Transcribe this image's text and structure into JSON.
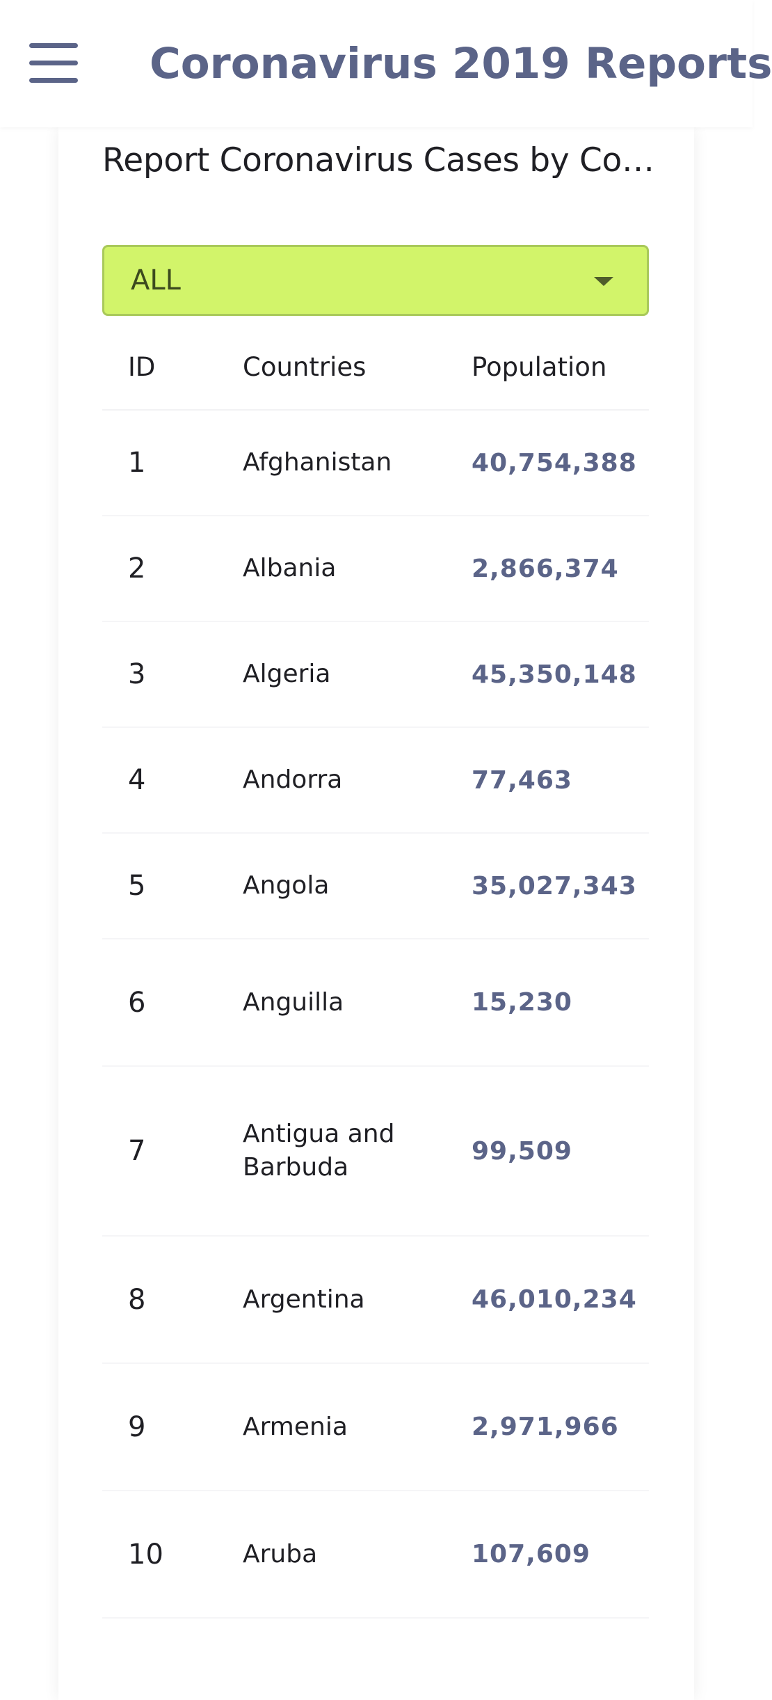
{
  "app": {
    "title": "Coronavirus 2019 Reports",
    "accent_color": "#5b6488"
  },
  "card": {
    "title": "Report Coronavirus Cases by Co…"
  },
  "filter": {
    "selected": "ALL",
    "background": "#d2f46a"
  },
  "table": {
    "headers": {
      "id": "ID",
      "country": "Countries",
      "population": "Population"
    },
    "rows": [
      {
        "id": "1",
        "country": "Afghanistan",
        "population": "40,754,388"
      },
      {
        "id": "2",
        "country": "Albania",
        "population": "2,866,374"
      },
      {
        "id": "3",
        "country": "Algeria",
        "population": "45,350,148"
      },
      {
        "id": "4",
        "country": "Andorra",
        "population": "77,463"
      },
      {
        "id": "5",
        "country": "Angola",
        "population": "35,027,343"
      },
      {
        "id": "6",
        "country": "Anguilla",
        "population": "15,230"
      },
      {
        "id": "7",
        "country": "Antigua and Barbuda",
        "population": "99,509"
      },
      {
        "id": "8",
        "country": "Argentina",
        "population": "46,010,234"
      },
      {
        "id": "9",
        "country": "Armenia",
        "population": "2,971,966"
      },
      {
        "id": "10",
        "country": "Aruba",
        "population": "107,609"
      }
    ]
  }
}
